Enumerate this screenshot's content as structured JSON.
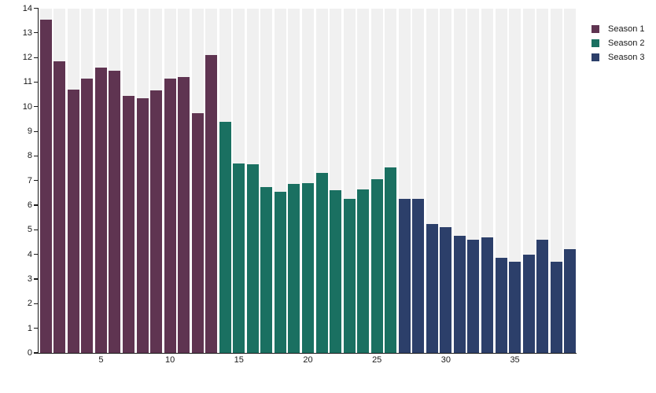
{
  "chart_data": {
    "type": "bar",
    "title": "",
    "xlabel": "",
    "ylabel": "",
    "ylim": [
      0,
      14
    ],
    "yticks": [
      0,
      1,
      2,
      3,
      4,
      5,
      6,
      7,
      8,
      9,
      10,
      11,
      12,
      13,
      14
    ],
    "xticks": [
      5,
      10,
      15,
      20,
      25,
      30,
      35
    ],
    "bar_count": 39,
    "legend_position": "top-right",
    "series": [
      {
        "name": "Season 1",
        "color": "#5f3451",
        "x_start": 1,
        "values": [
          13.55,
          11.85,
          10.7,
          11.15,
          11.6,
          11.45,
          10.45,
          10.35,
          10.65,
          11.15,
          11.2,
          9.75,
          12.1
        ]
      },
      {
        "name": "Season 2",
        "color": "#1a7061",
        "x_start": 14,
        "values": [
          9.4,
          7.7,
          7.65,
          6.75,
          6.55,
          6.85,
          6.9,
          7.3,
          6.6,
          6.25,
          6.65,
          7.05,
          7.55
        ]
      },
      {
        "name": "Season 3",
        "color": "#2c3f6a",
        "x_start": 27,
        "values": [
          6.25,
          6.25,
          5.25,
          5.1,
          4.75,
          4.6,
          4.7,
          3.85,
          3.7,
          4.0,
          4.6,
          3.7,
          4.2
        ]
      }
    ],
    "colors": {
      "background_band": "#f0f0f0",
      "plot_background": "#ffffff",
      "axis": "#1a1a1a"
    }
  }
}
